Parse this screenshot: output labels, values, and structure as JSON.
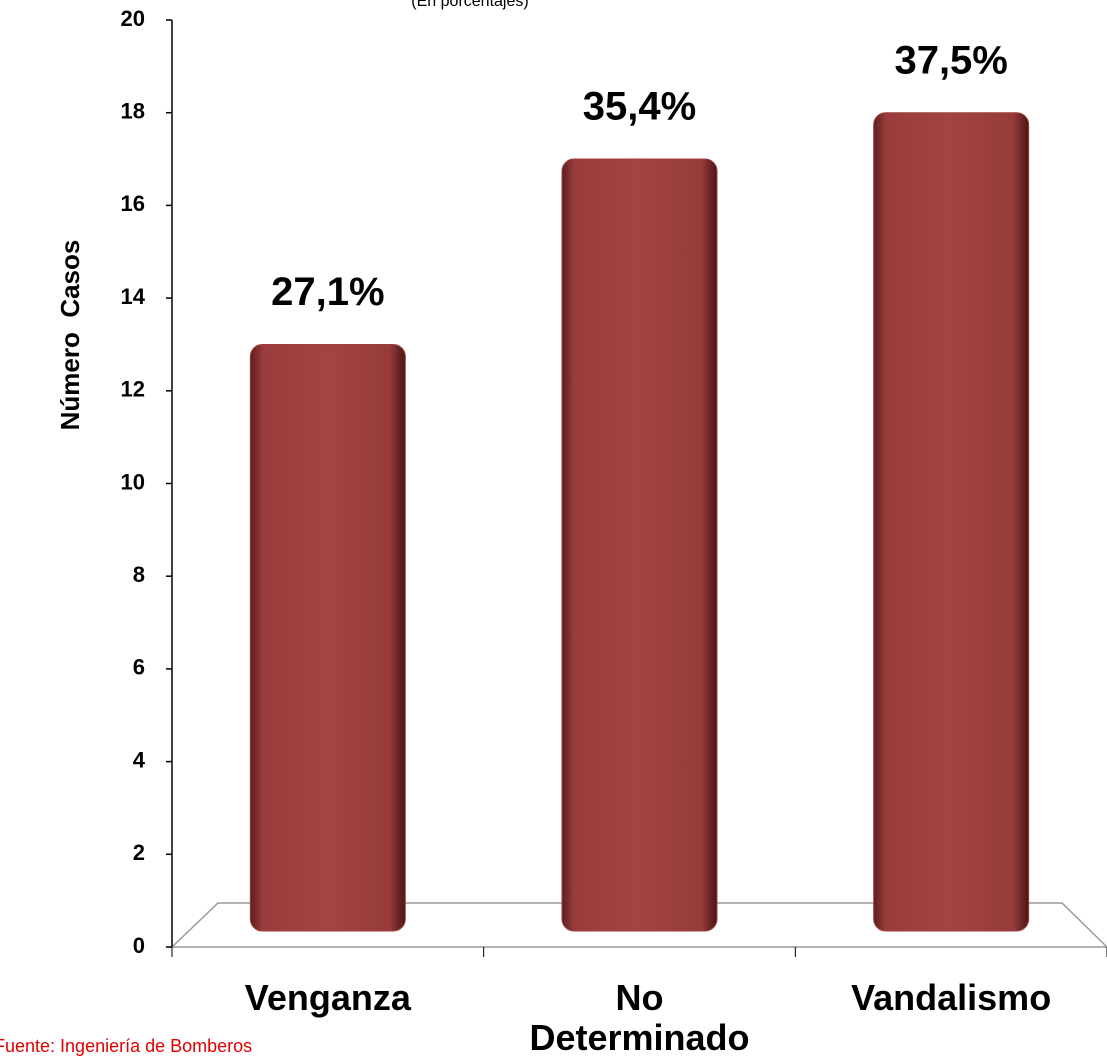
{
  "chart_data": {
    "type": "bar",
    "subtitle": "(En porcentajes)",
    "y_label": "Número  Casos",
    "source": "Fuente: Ingeniería de Bomberos",
    "categories": [
      "Venganza",
      "No Determinado",
      "Vandalismo"
    ],
    "values": [
      13,
      17,
      18
    ],
    "annotations": [
      "27,1%",
      "35,4%",
      "37,5%"
    ],
    "color": "#9e3f3f",
    "ylim": [
      0,
      20
    ],
    "yticks": [
      0,
      2,
      4,
      6,
      8,
      10,
      12,
      14,
      16,
      18,
      20
    ],
    "grid": false
  }
}
